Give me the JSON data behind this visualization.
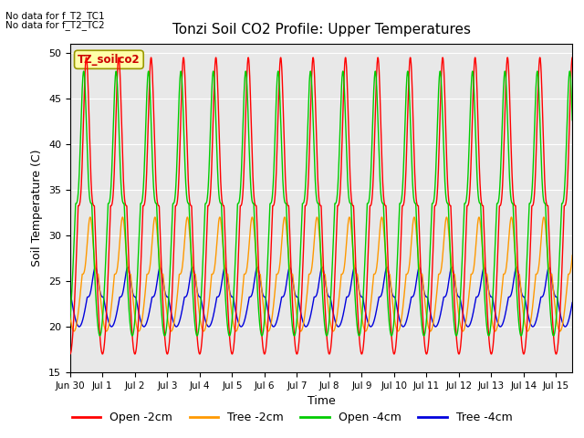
{
  "title": "Tonzi Soil CO2 Profile: Upper Temperatures",
  "xlabel": "Time",
  "ylabel": "Soil Temperature (C)",
  "ylim": [
    15,
    51
  ],
  "yticks": [
    15,
    20,
    25,
    30,
    35,
    40,
    45,
    50
  ],
  "no_data_text1": "No data for f_T2_TC1",
  "no_data_text2": "No data for f_T2_TC2",
  "legend_box_text": "TZ_soilco2",
  "legend_entries": [
    "Open -2cm",
    "Tree -2cm",
    "Open -4cm",
    "Tree -4cm"
  ],
  "line_colors": [
    "#ff0000",
    "#ff9900",
    "#00cc00",
    "#0000dd"
  ],
  "background_color": "#e8e8e8",
  "n_days": 15.5,
  "samples_per_day": 144,
  "open2_amplitude": 32.5,
  "open2_min": 17.0,
  "tree2_amplitude": 12.5,
  "tree2_min": 19.5,
  "open4_amplitude": 29.0,
  "open4_min": 19.0,
  "tree4_amplitude": 6.5,
  "tree4_min": 20.0,
  "phase_shift_open2": 0.0,
  "phase_shift_tree2": 0.12,
  "phase_shift_open4": -0.08,
  "phase_shift_tree4": 0.28,
  "sharpness": 3.5
}
